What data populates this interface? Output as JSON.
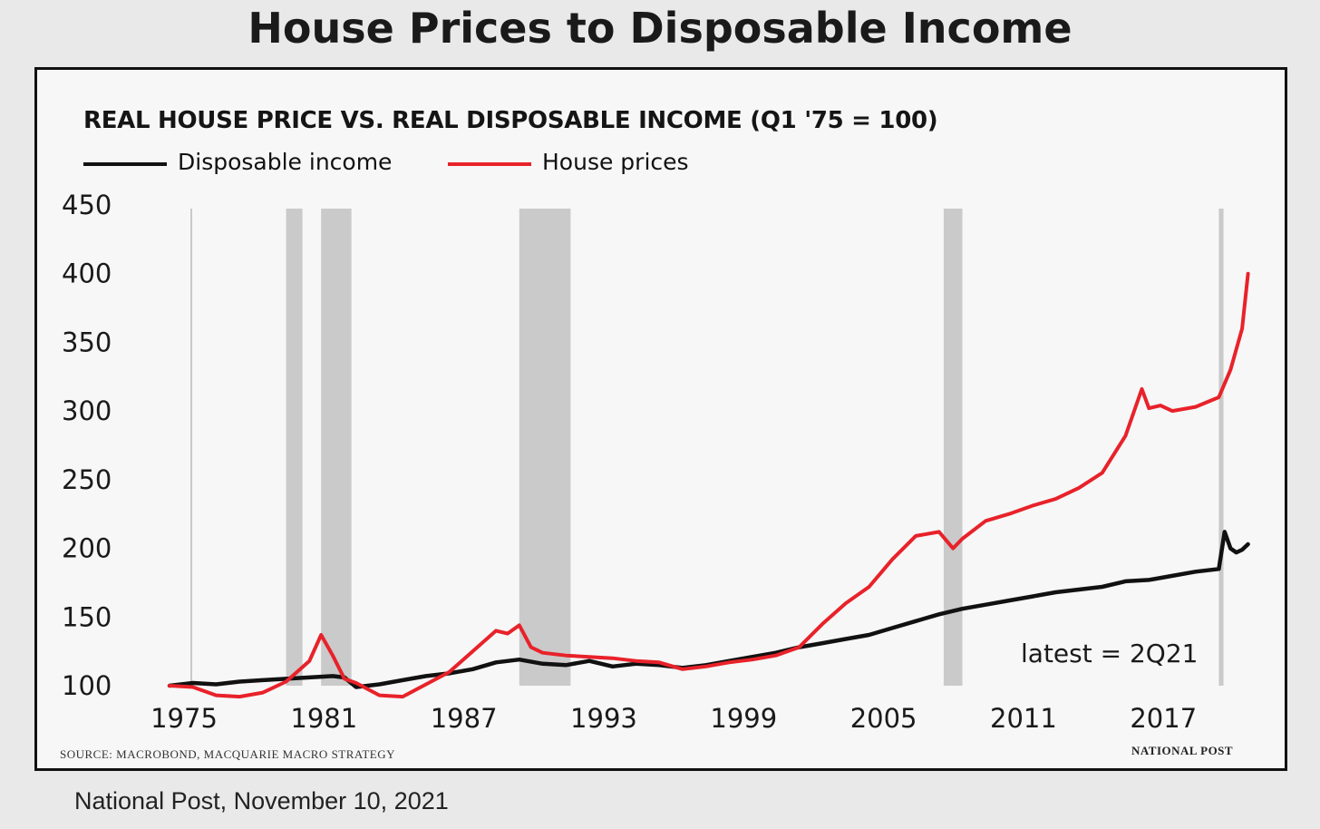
{
  "page": {
    "title": "House Prices to Disposable Income",
    "caption": "National Post, November 10, 2021"
  },
  "chart_data": {
    "type": "line",
    "title": "REAL HOUSE PRICE VS. REAL DISPOSABLE INCOME (Q1 '75 = 100)",
    "xlabel": "",
    "ylabel": "",
    "xlim": [
      1975,
      2021.5
    ],
    "ylim": [
      100,
      450
    ],
    "x_ticks": [
      "1975",
      "1981",
      "1987",
      "1993",
      "1999",
      "2005",
      "2011",
      "2017"
    ],
    "y_ticks": [
      "100",
      "150",
      "200",
      "250",
      "300",
      "350",
      "400",
      "450"
    ],
    "grid": false,
    "legend_position": "top-left",
    "recession_bands": [
      [
        1980.0,
        1980.7
      ],
      [
        1981.5,
        1982.8
      ],
      [
        1990.0,
        1992.2
      ],
      [
        2008.2,
        2009.0
      ],
      [
        2020.0,
        2020.2
      ]
    ],
    "band_color": "#c4c4c4",
    "series": [
      {
        "name": "Disposable income",
        "color": "#111111",
        "x": [
          1975,
          1976,
          1977,
          1978,
          1979,
          1980,
          1981,
          1982,
          1982.5,
          1983,
          1984,
          1985,
          1986,
          1987,
          1988,
          1989,
          1990,
          1991,
          1992,
          1993,
          1994,
          1995,
          1996,
          1997,
          1998,
          1999,
          2000,
          2001,
          2002,
          2003,
          2004,
          2005,
          2006,
          2007,
          2008,
          2009,
          2010,
          2011,
          2012,
          2013,
          2014,
          2015,
          2016,
          2017,
          2018,
          2019,
          2020,
          2020.25,
          2020.5,
          2020.75,
          2021,
          2021.25
        ],
        "values": [
          100,
          102,
          101,
          103,
          104,
          105,
          106,
          107,
          106,
          99,
          101,
          104,
          107,
          109,
          112,
          117,
          119,
          116,
          115,
          118,
          114,
          116,
          115,
          113,
          115,
          118,
          121,
          124,
          128,
          131,
          134,
          137,
          142,
          147,
          152,
          156,
          159,
          162,
          165,
          168,
          170,
          172,
          176,
          177,
          180,
          183,
          185,
          212,
          200,
          197,
          199,
          203
        ]
      },
      {
        "name": "House prices",
        "color": "#e8222a",
        "x": [
          1975,
          1976,
          1977,
          1978,
          1979,
          1980,
          1981,
          1981.5,
          1982,
          1982.5,
          1983,
          1984,
          1985,
          1986,
          1987,
          1988,
          1989,
          1989.5,
          1990,
          1990.5,
          1991,
          1992,
          1993,
          1994,
          1995,
          1996,
          1997,
          1998,
          1999,
          2000,
          2001,
          2002,
          2003,
          2004,
          2005,
          2006,
          2007,
          2008,
          2008.6,
          2009,
          2010,
          2011,
          2012,
          2013,
          2014,
          2015,
          2016,
          2016.7,
          2017,
          2017.5,
          2018,
          2019,
          2020,
          2020.5,
          2021,
          2021.25
        ],
        "values": [
          100,
          99,
          93,
          92,
          95,
          103,
          118,
          137,
          122,
          105,
          102,
          93,
          92,
          101,
          110,
          125,
          140,
          138,
          144,
          128,
          124,
          122,
          121,
          120,
          118,
          117,
          112,
          114,
          117,
          119,
          122,
          128,
          145,
          160,
          172,
          192,
          209,
          212,
          200,
          207,
          220,
          225,
          231,
          236,
          244,
          255,
          282,
          316,
          302,
          304,
          300,
          303,
          310,
          330,
          360,
          400
        ]
      }
    ],
    "annotations": [
      "latest = 2Q21"
    ],
    "source": "SOURCE: MACROBOND, MACQUARIE MACRO STRATEGY",
    "publisher": "NATIONAL POST"
  }
}
